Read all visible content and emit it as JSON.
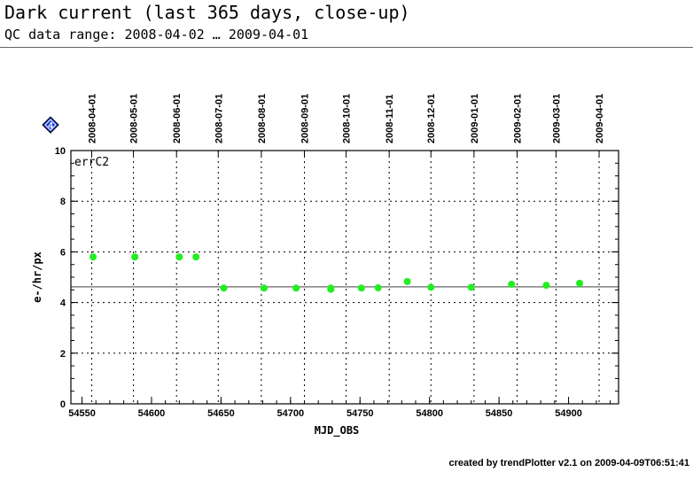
{
  "header": {
    "title": "Dark current (last 365 days, close-up)",
    "subtitle": "QC data range: 2008-04-02 … 2009-04-01"
  },
  "footer": {
    "text": "created by trendPlotter v2.1 on 2009-04-09T06:51:41"
  },
  "badge": {
    "text": "4",
    "color": "#1a3fd8"
  },
  "chart_data": {
    "type": "scatter",
    "panel_label": "errC2",
    "xlabel": "MJD_OBS",
    "ylabel": "e-/hr/px",
    "xlim": [
      54542,
      54936
    ],
    "ylim": [
      0,
      10
    ],
    "x_ticks": [
      54550,
      54600,
      54650,
      54700,
      54750,
      54800,
      54850,
      54900
    ],
    "y_ticks": [
      0,
      2,
      4,
      6,
      8,
      10
    ],
    "top_date_ticks": [
      {
        "label": "2008-04-01",
        "mjd": 54557
      },
      {
        "label": "2008-05-01",
        "mjd": 54587
      },
      {
        "label": "2008-06-01",
        "mjd": 54618
      },
      {
        "label": "2008-07-01",
        "mjd": 54648
      },
      {
        "label": "2008-08-01",
        "mjd": 54679
      },
      {
        "label": "2008-09-01",
        "mjd": 54710
      },
      {
        "label": "2008-10-01",
        "mjd": 54740
      },
      {
        "label": "2008-11-01",
        "mjd": 54771
      },
      {
        "label": "2008-12-01",
        "mjd": 54801
      },
      {
        "label": "2009-01-01",
        "mjd": 54832
      },
      {
        "label": "2009-02-01",
        "mjd": 54863
      },
      {
        "label": "2009-03-01",
        "mjd": 54891
      },
      {
        "label": "2009-04-01",
        "mjd": 54922
      }
    ],
    "grid": true,
    "reference_line": 4.62,
    "series": [
      {
        "color": "#22ee22",
        "points": [
          {
            "x": 54558,
            "y": 5.8
          },
          {
            "x": 54588,
            "y": 5.8
          },
          {
            "x": 54620,
            "y": 5.8
          },
          {
            "x": 54632,
            "y": 5.8
          },
          {
            "x": 54652,
            "y": 4.57
          },
          {
            "x": 54681,
            "y": 4.57
          },
          {
            "x": 54704,
            "y": 4.57
          },
          {
            "x": 54729,
            "y": 4.57
          },
          {
            "x": 54729,
            "y": 4.52
          },
          {
            "x": 54751,
            "y": 4.57
          },
          {
            "x": 54763,
            "y": 4.58
          },
          {
            "x": 54784,
            "y": 4.83
          },
          {
            "x": 54801,
            "y": 4.6
          },
          {
            "x": 54830,
            "y": 4.6
          },
          {
            "x": 54859,
            "y": 4.72
          },
          {
            "x": 54884,
            "y": 4.68
          },
          {
            "x": 54908,
            "y": 4.76
          }
        ]
      }
    ]
  }
}
